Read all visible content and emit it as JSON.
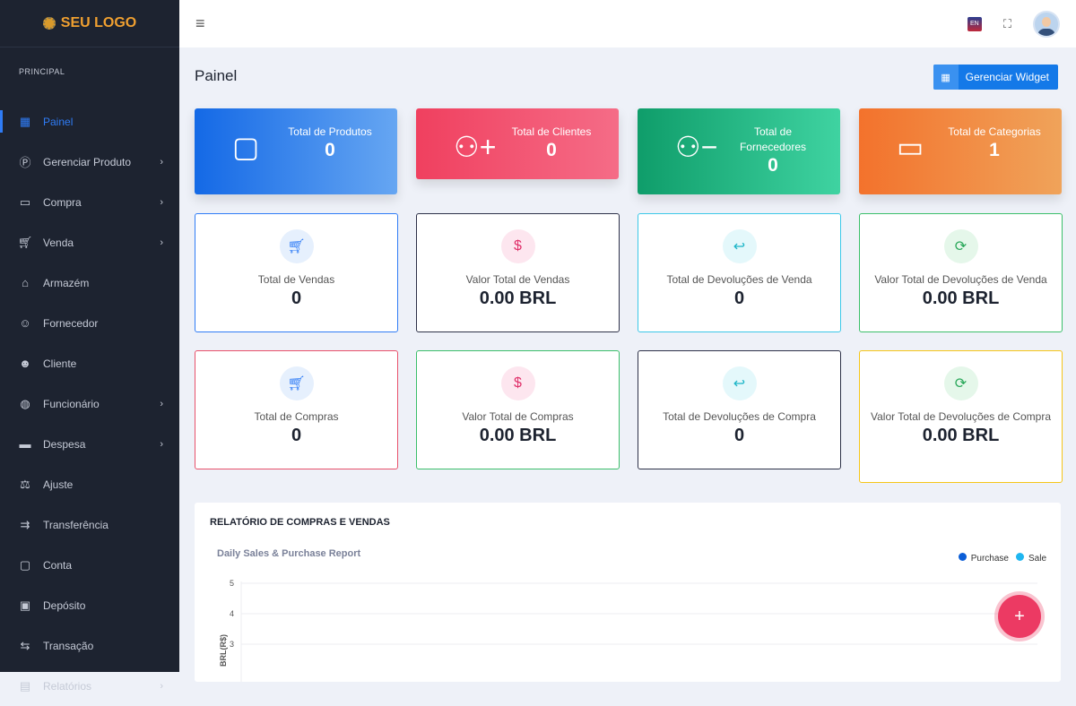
{
  "logo": {
    "text": "SEU LOGO"
  },
  "sidebar": {
    "section": "PRINCIPAL",
    "items": [
      {
        "label": "Painel",
        "icon": "dashboard-icon",
        "active": true,
        "sub": false
      },
      {
        "label": "Gerenciar Produto",
        "icon": "product-icon",
        "sub": true
      },
      {
        "label": "Compra",
        "icon": "purchase-icon",
        "sub": true
      },
      {
        "label": "Venda",
        "icon": "cart-icon",
        "sub": true
      },
      {
        "label": "Armazém",
        "icon": "home-icon",
        "sub": false
      },
      {
        "label": "Fornecedor",
        "icon": "supplier-icon",
        "sub": false
      },
      {
        "label": "Cliente",
        "icon": "user-icon",
        "sub": false
      },
      {
        "label": "Funcionário",
        "icon": "globe-icon",
        "sub": true
      },
      {
        "label": "Despesa",
        "icon": "card-icon",
        "sub": true
      },
      {
        "label": "Ajuste",
        "icon": "scale-icon",
        "sub": false
      },
      {
        "label": "Transferência",
        "icon": "transfer-icon",
        "sub": false
      },
      {
        "label": "Conta",
        "icon": "account-icon",
        "sub": false
      },
      {
        "label": "Depósito",
        "icon": "wallet-icon",
        "sub": false
      },
      {
        "label": "Transação",
        "icon": "exchange-icon",
        "sub": false
      },
      {
        "label": "Relatórios",
        "icon": "report-icon",
        "sub": true
      }
    ]
  },
  "topbar": {
    "lang": "EN"
  },
  "page": {
    "title": "Painel",
    "widget_button": "Gerenciar Widget"
  },
  "stats": [
    {
      "label": "Total de Produtos",
      "value": "0",
      "color": "#1469e6"
    },
    {
      "label": "Total de Clientes",
      "value": "0",
      "color": "#f0405f"
    },
    {
      "label": "Total de Fornecedores",
      "value": "0",
      "color": "#0f9d6a"
    },
    {
      "label": "Total de Categorias",
      "value": "1",
      "color": "#f3722c"
    }
  ],
  "cards": [
    {
      "label": "Total de Vendas",
      "value": "0",
      "border": "#2f7cf6"
    },
    {
      "label": "Valor Total de Vendas",
      "value": "0.00 BRL",
      "border": "#2d3148"
    },
    {
      "label": "Total de Devoluções de Venda",
      "value": "0",
      "border": "#3cc8e8"
    },
    {
      "label": "Valor Total de Devoluções de Venda",
      "value": "0.00 BRL",
      "border": "#3bbf6a"
    },
    {
      "label": "Total de Compras",
      "value": "0",
      "border": "#e8506a"
    },
    {
      "label": "Valor Total de Compras",
      "value": "0.00 BRL",
      "border": "#3bbf6a"
    },
    {
      "label": "Total de Devoluções de Compra",
      "value": "0",
      "border": "#2d3148"
    },
    {
      "label": "Valor Total de Devoluções de Compra",
      "value": "0.00 BRL",
      "border": "#f5c518"
    }
  ],
  "report": {
    "heading": "RELATÓRIO DE COMPRAS E VENDAS"
  },
  "chart_data": {
    "type": "line",
    "title": "Daily Sales & Purchase Report",
    "ylabel": "BRL(R$)",
    "yticks": [
      "5",
      "4",
      "3"
    ],
    "ylim": [
      0,
      5
    ],
    "grid": true,
    "legend_position": "top-right",
    "series": [
      {
        "name": "Purchase",
        "color": "#0b5ed7",
        "values": []
      },
      {
        "name": "Sale",
        "color": "#1fb6f0",
        "values": []
      }
    ]
  },
  "fab": {
    "label": "+"
  }
}
